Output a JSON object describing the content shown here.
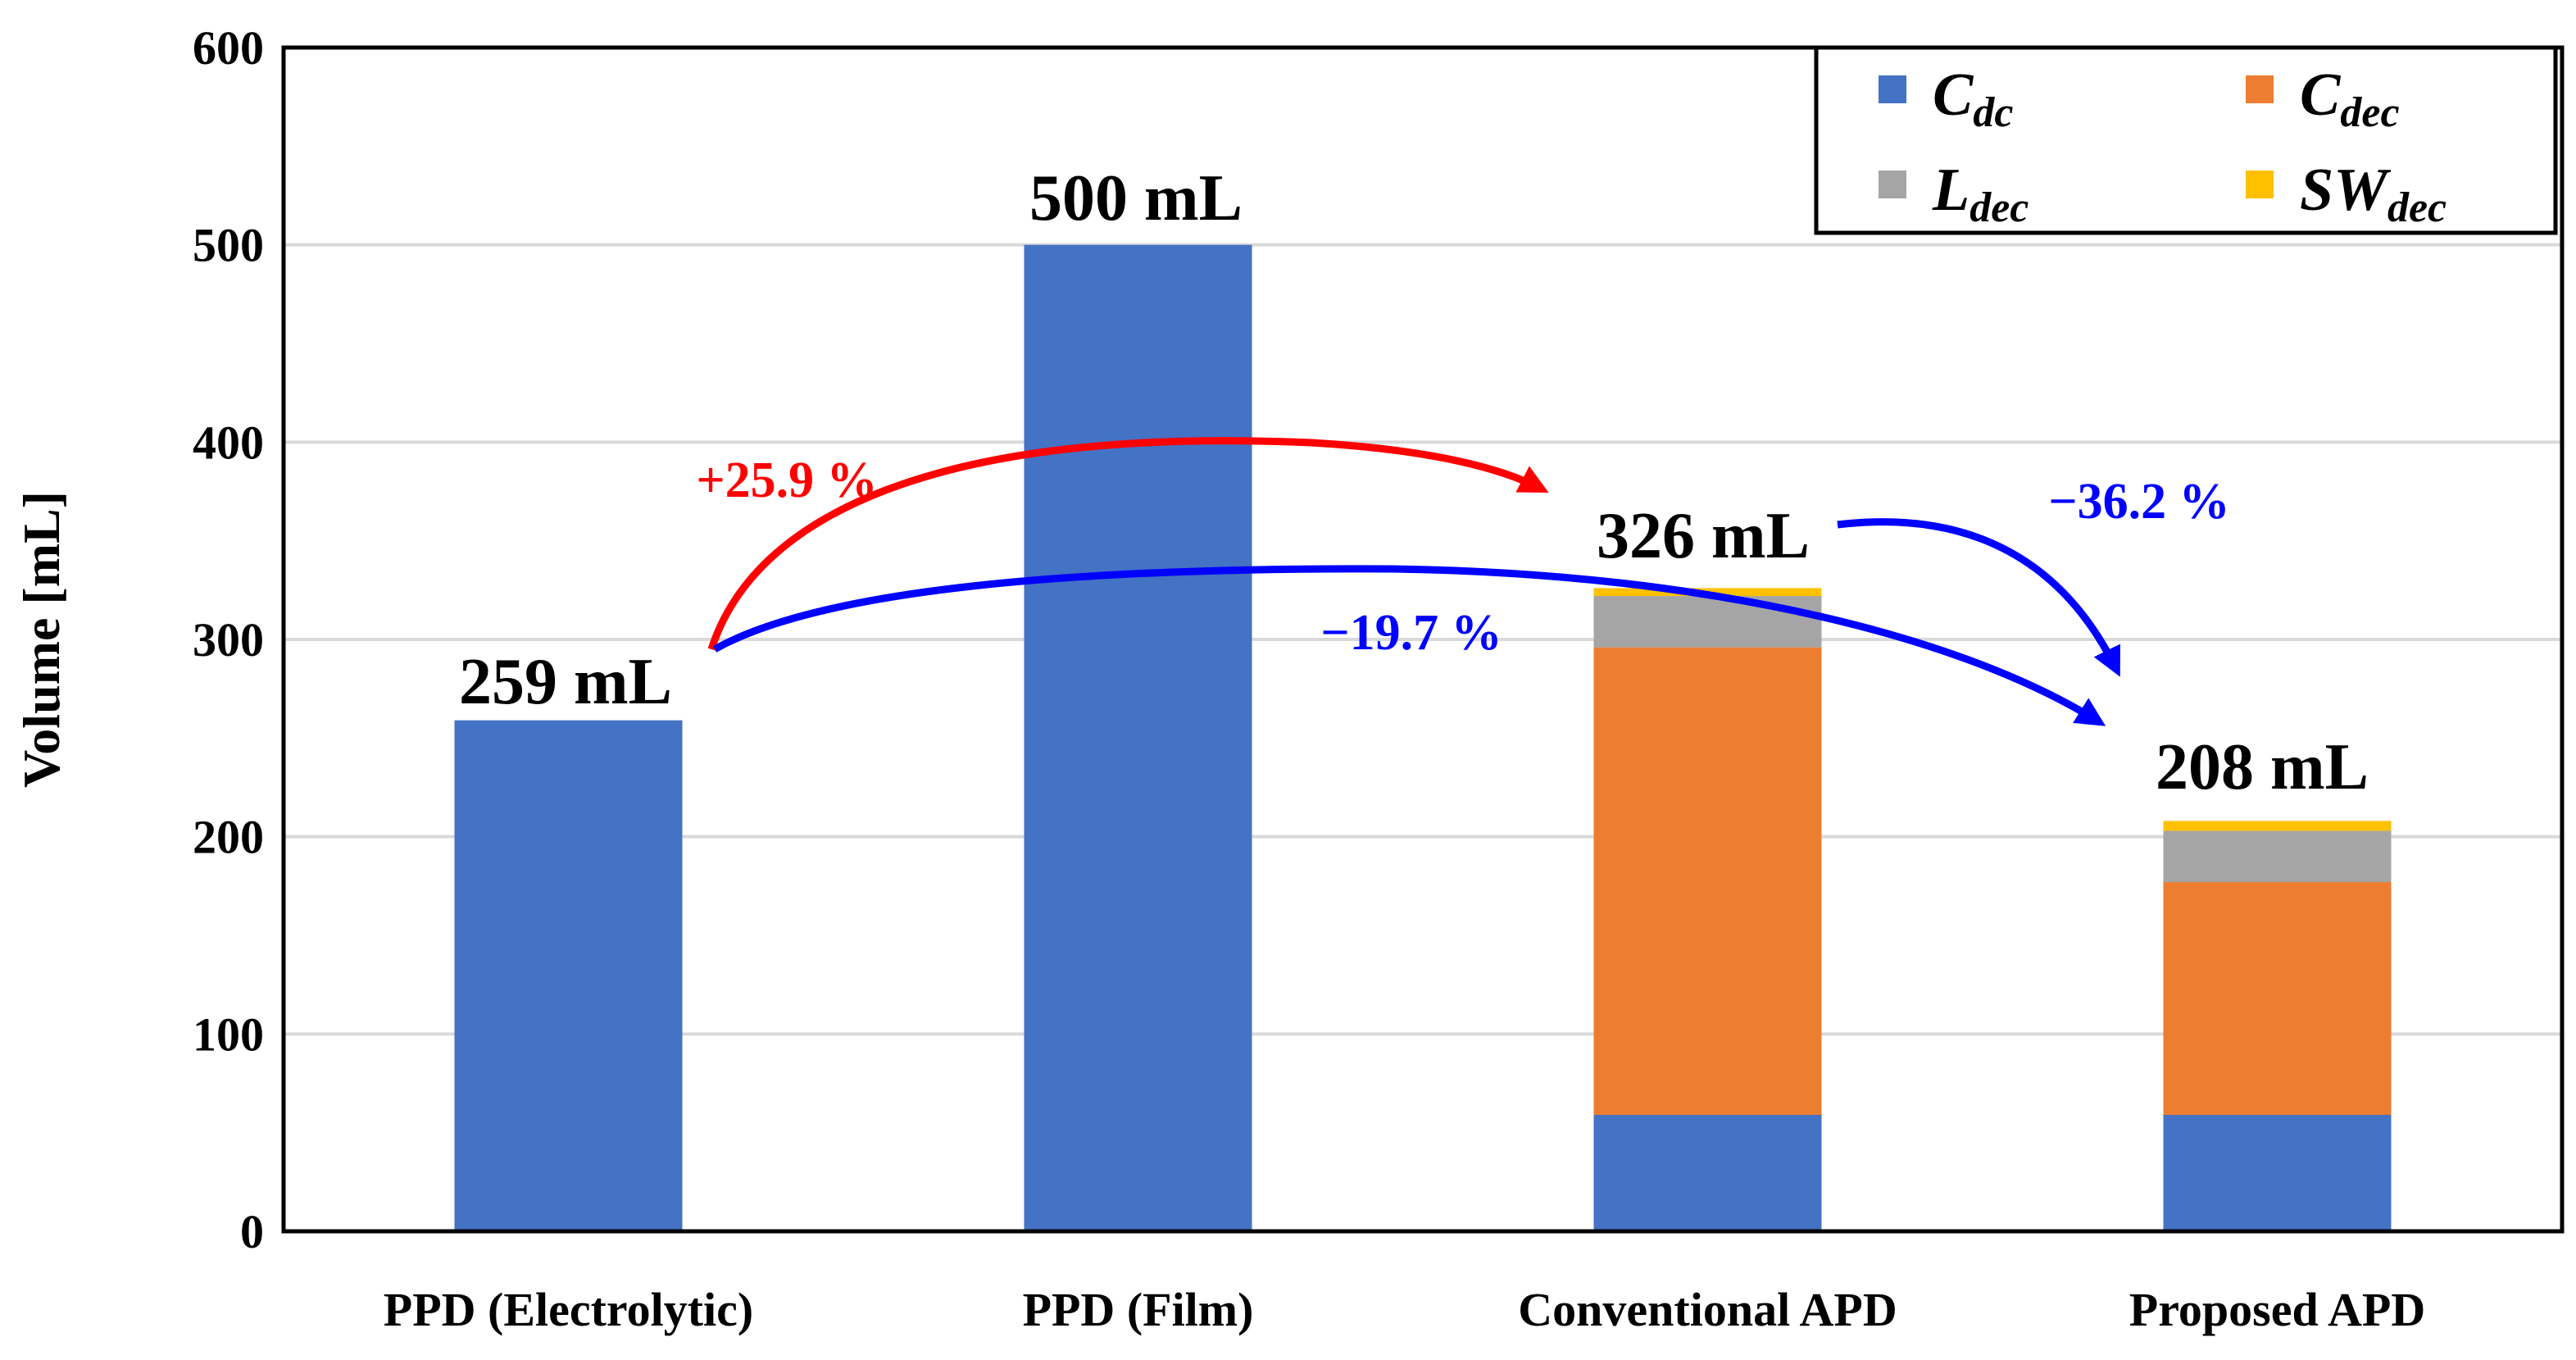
{
  "chart_data": {
    "type": "bar",
    "stacked": true,
    "ylabel": "Volume [mL]",
    "xlabel": "",
    "ylim": [
      0,
      600
    ],
    "yticks": [
      0,
      100,
      200,
      300,
      400,
      500,
      600
    ],
    "grid": true,
    "legend_position": "top-right",
    "categories": [
      "PPD (Electrolytic)",
      "PPD (Film)",
      "Conventional APD",
      "Proposed APD"
    ],
    "series": [
      {
        "key": "cdc",
        "name_main": "C",
        "name_sub": "dc",
        "color": "#4472C4",
        "values": [
          259,
          500,
          59,
          59
        ]
      },
      {
        "key": "cdec",
        "name_main": "C",
        "name_sub": "dec",
        "color": "#ED7D31",
        "values": [
          0,
          0,
          237,
          118
        ]
      },
      {
        "key": "ldec",
        "name_main": "L",
        "name_sub": "dec",
        "color": "#A5A5A5",
        "values": [
          0,
          0,
          26,
          26
        ]
      },
      {
        "key": "swdec",
        "name_main": "SW",
        "name_sub": "dec",
        "color": "#FFC000",
        "values": [
          0,
          0,
          4,
          5
        ]
      }
    ],
    "totals_labels": [
      "259 mL",
      "500 mL",
      "326 mL",
      "208 mL"
    ],
    "annotations": [
      {
        "text": "+25.9 %",
        "color": "#FF0000",
        "from_category": 0,
        "to_category": 2
      },
      {
        "text": "−19.7 %",
        "color": "#0000FF",
        "from_category": 0,
        "to_category": 3
      },
      {
        "text": "−36.2 %",
        "color": "#0000FF",
        "from_category": 2,
        "to_category": 3
      }
    ]
  }
}
